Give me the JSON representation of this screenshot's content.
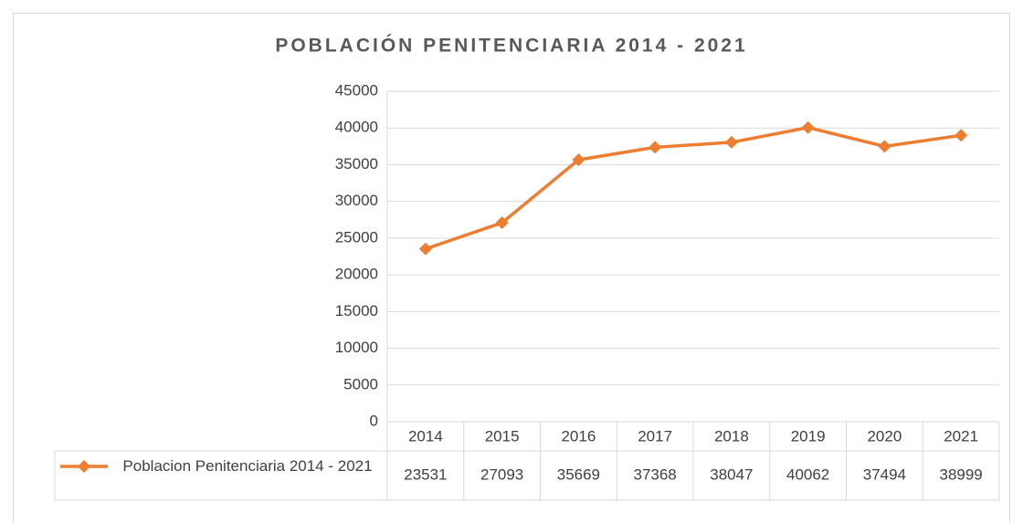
{
  "chart_data": {
    "type": "line",
    "title": "POBLACIÓN PENITENCIARIA 2014 - 2021",
    "categories": [
      "2014",
      "2015",
      "2016",
      "2017",
      "2018",
      "2019",
      "2020",
      "2021"
    ],
    "series": [
      {
        "name": "Poblacion Penitenciaria 2014 - 2021",
        "color": "#ed7d31",
        "values": [
          23531,
          27093,
          35669,
          37368,
          38047,
          40062,
          37494,
          38999
        ]
      }
    ],
    "ylim": [
      0,
      45000
    ],
    "yticks": [
      0,
      5000,
      10000,
      15000,
      20000,
      25000,
      30000,
      35000,
      40000,
      45000
    ],
    "grid": true
  }
}
